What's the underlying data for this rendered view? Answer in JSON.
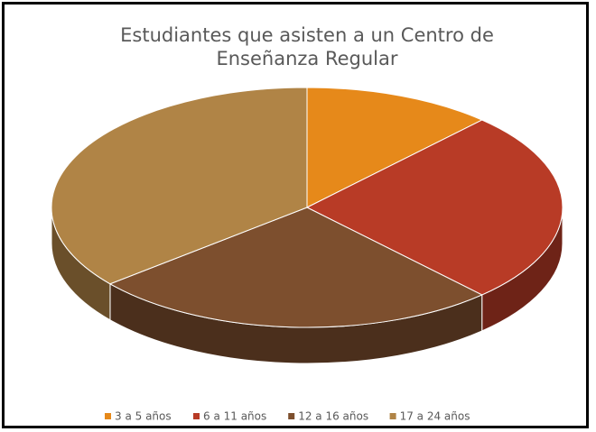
{
  "chart_data": {
    "type": "pie3d",
    "title": "Estudiantes que asisten a un Centro de Enseñanza Regular",
    "categories": [
      "3 a 5 años",
      "6 a 11 años",
      "12 a 16 años",
      "17 a 24 años"
    ],
    "values": [
      12,
      26,
      26,
      36
    ],
    "colors": [
      "#e6891a",
      "#b83b26",
      "#7d4f2e",
      "#b08446"
    ],
    "legend": "bottom"
  }
}
